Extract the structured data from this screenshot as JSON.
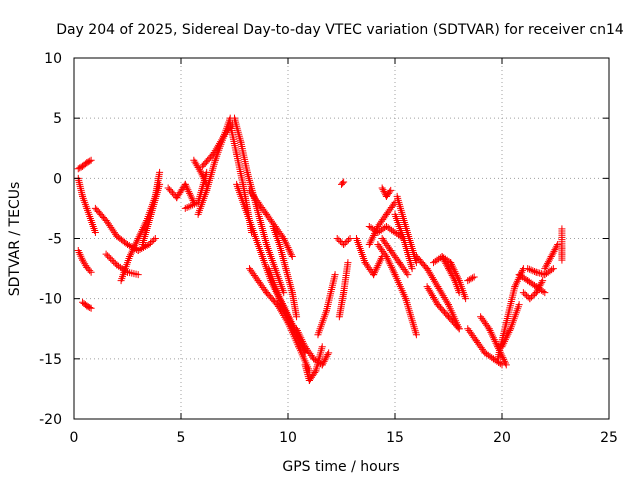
{
  "chart_data": {
    "type": "scatter",
    "title": "Day 204 of 2025, Sidereal Day-to-day VTEC variation (SDTVAR) for receiver cn14",
    "xlabel": "GPS time / hours",
    "ylabel": "SDTVAR / TECUs",
    "xlim": [
      0,
      25
    ],
    "ylim": [
      -20,
      10
    ],
    "x_ticks": [
      "0",
      "5",
      "10",
      "15",
      "20",
      "25"
    ],
    "y_ticks": [
      "-20",
      "-15",
      "-10",
      "-5",
      "0",
      "5",
      "10"
    ],
    "grid": true,
    "marker": "+",
    "marker_color": "#ff0000",
    "series": [
      {
        "name": "arc1",
        "x": [
          0.2,
          0.4,
          0.6,
          0.8
        ],
        "y": [
          0.8,
          1.0,
          1.3,
          1.5
        ]
      },
      {
        "name": "arc2",
        "x": [
          0.2,
          0.4,
          0.6,
          0.8,
          1.0
        ],
        "y": [
          0,
          -1.5,
          -2.5,
          -3.5,
          -4.5
        ]
      },
      {
        "name": "arc3",
        "x": [
          0.2,
          0.4,
          0.6,
          0.8
        ],
        "y": [
          -6,
          -6.8,
          -7.4,
          -7.8
        ]
      },
      {
        "name": "arc4",
        "x": [
          0.4,
          0.6,
          0.8
        ],
        "y": [
          -10.3,
          -10.6,
          -10.8
        ]
      },
      {
        "name": "arc5",
        "x": [
          1.0,
          1.5,
          2.0,
          2.5,
          3.0,
          3.5,
          3.8
        ],
        "y": [
          -2.5,
          -3.5,
          -4.8,
          -5.5,
          -6.0,
          -5.5,
          -5.0
        ]
      },
      {
        "name": "arc6",
        "x": [
          1.5,
          2.0,
          2.5,
          3.0
        ],
        "y": [
          -6.3,
          -7.2,
          -7.8,
          -8.0
        ]
      },
      {
        "name": "arc7",
        "x": [
          2.2,
          2.6,
          3.0,
          3.4,
          3.8,
          4.0
        ],
        "y": [
          -8.5,
          -6.5,
          -5.0,
          -3.5,
          -1.5,
          0.5
        ]
      },
      {
        "name": "arc8",
        "x": [
          3.2,
          3.6,
          4.0
        ],
        "y": [
          -5.5,
          -3.0,
          -0.5
        ]
      },
      {
        "name": "arc9",
        "x": [
          4.4,
          4.8,
          5.2,
          5.6
        ],
        "y": [
          -0.8,
          -1.6,
          -0.5,
          -2.0
        ]
      },
      {
        "name": "arc10",
        "x": [
          5.2,
          5.8,
          6.2
        ],
        "y": [
          -2.5,
          -2.0,
          0.5
        ]
      },
      {
        "name": "arc11",
        "x": [
          5.6,
          5.9,
          6.2
        ],
        "y": [
          1.5,
          0.6,
          -0.5
        ]
      },
      {
        "name": "arc12",
        "x": [
          5.8,
          6.2,
          6.6,
          7.0,
          7.3
        ],
        "y": [
          -3.0,
          -1.0,
          1.5,
          3.5,
          5.0
        ]
      },
      {
        "name": "arc13",
        "x": [
          6.0,
          6.5,
          7.0,
          7.4
        ],
        "y": [
          1.0,
          2.0,
          3.5,
          4.5
        ]
      },
      {
        "name": "arc14",
        "x": [
          7.3,
          7.6,
          7.9,
          8.1,
          8.3
        ],
        "y": [
          4.5,
          2.0,
          -0.5,
          -2.5,
          -4.5
        ]
      },
      {
        "name": "arc15",
        "x": [
          7.5,
          7.8,
          8.1,
          8.4,
          8.7,
          9.0,
          9.4,
          9.8
        ],
        "y": [
          5.0,
          3.0,
          0.5,
          -1.5,
          -3.5,
          -5.5,
          -7.5,
          -9.5
        ]
      },
      {
        "name": "arc16",
        "x": [
          7.6,
          8.0,
          8.4,
          8.8,
          9.2,
          9.6,
          10.0,
          10.4,
          10.8
        ],
        "y": [
          -0.5,
          -2.5,
          -4.5,
          -6.5,
          -8.5,
          -10.0,
          -11.5,
          -13.0,
          -14.5
        ]
      },
      {
        "name": "arc17",
        "x": [
          8.2,
          8.6,
          9.0,
          9.5,
          10.0,
          10.5,
          11.0
        ],
        "y": [
          -7.5,
          -8.5,
          -9.5,
          -10.5,
          -12.0,
          -14.0,
          -16.0
        ]
      },
      {
        "name": "arc18",
        "x": [
          8.2,
          8.6,
          9.0,
          9.4,
          9.8,
          10.2
        ],
        "y": [
          -1.0,
          -2.0,
          -3.0,
          -4.0,
          -5.0,
          -6.5
        ]
      },
      {
        "name": "arc19",
        "x": [
          9.3,
          9.6,
          9.9,
          10.2,
          10.4
        ],
        "y": [
          -4.0,
          -5.5,
          -7.5,
          -9.5,
          -11.5
        ]
      },
      {
        "name": "arc20",
        "x": [
          9.1,
          9.5,
          9.9,
          10.3
        ],
        "y": [
          -7.5,
          -9.5,
          -11.0,
          -12.5
        ]
      },
      {
        "name": "arc21",
        "x": [
          10.4,
          10.8,
          11.2,
          11.6,
          11.9
        ],
        "y": [
          -12.5,
          -14.0,
          -15.0,
          -15.5,
          -14.5
        ]
      },
      {
        "name": "arc22",
        "x": [
          10.8,
          11.0,
          11.3,
          11.6
        ],
        "y": [
          -15.5,
          -16.8,
          -16.0,
          -14.0
        ]
      },
      {
        "name": "arc23",
        "x": [
          11.4,
          11.8,
          12.2
        ],
        "y": [
          -13.0,
          -11.0,
          -8.0
        ]
      },
      {
        "name": "arc24",
        "x": [
          12.3,
          12.6,
          12.9
        ],
        "y": [
          -5.0,
          -5.5,
          -5.0
        ]
      },
      {
        "name": "arc25",
        "x": [
          12.4,
          12.6,
          12.8
        ],
        "y": [
          -11.5,
          -9.5,
          -7.0
        ]
      },
      {
        "name": "arc26",
        "x": [
          12.5,
          12.6
        ],
        "y": [
          -0.5,
          -0.3
        ]
      },
      {
        "name": "arc27",
        "x": [
          13.2,
          13.6,
          14.0,
          14.4
        ],
        "y": [
          -5.0,
          -7.0,
          -8.0,
          -6.5
        ]
      },
      {
        "name": "arc28",
        "x": [
          13.8,
          14.2,
          14.6,
          15.0,
          15.4
        ],
        "y": [
          -4.0,
          -4.5,
          -4.0,
          -4.5,
          -5.0
        ]
      },
      {
        "name": "arc29",
        "x": [
          13.8,
          14.2,
          14.6,
          15.0
        ],
        "y": [
          -5.5,
          -4.0,
          -3.0,
          -2.0
        ]
      },
      {
        "name": "arc30",
        "x": [
          14.2,
          14.6,
          15.0,
          15.5,
          16.0
        ],
        "y": [
          -5.5,
          -6.5,
          -8.0,
          -10.0,
          -13.0
        ]
      },
      {
        "name": "arc31",
        "x": [
          14.4,
          14.8,
          15.2,
          15.6
        ],
        "y": [
          -5.0,
          -6.0,
          -7.0,
          -8.0
        ]
      },
      {
        "name": "arc32",
        "x": [
          14.4,
          14.6,
          14.8
        ],
        "y": [
          -0.8,
          -1.5,
          -1.0
        ]
      },
      {
        "name": "arc33",
        "x": [
          15.1,
          15.5,
          16.0
        ],
        "y": [
          -1.5,
          -4.0,
          -7.0
        ]
      },
      {
        "name": "arc34",
        "x": [
          15.0,
          15.4,
          15.8
        ],
        "y": [
          -3.0,
          -5.0,
          -7.5
        ]
      },
      {
        "name": "arc35",
        "x": [
          16.0,
          16.5,
          17.0,
          17.5,
          18.0
        ],
        "y": [
          -6.5,
          -7.5,
          -9.0,
          -10.5,
          -12.5
        ]
      },
      {
        "name": "arc36",
        "x": [
          16.5,
          17.0,
          17.5,
          18.0
        ],
        "y": [
          -9.0,
          -10.5,
          -11.5,
          -12.5
        ]
      },
      {
        "name": "arc37",
        "x": [
          16.8,
          17.2,
          17.6,
          18.0,
          18.3
        ],
        "y": [
          -7.0,
          -6.5,
          -7.0,
          -8.5,
          -10.0
        ]
      },
      {
        "name": "arc38",
        "x": [
          17.2,
          17.5,
          17.8,
          18.0
        ],
        "y": [
          -6.5,
          -7.5,
          -8.5,
          -9.5
        ]
      },
      {
        "name": "arc39",
        "x": [
          18.4,
          18.8,
          19.2,
          19.6,
          20.0
        ],
        "y": [
          -12.5,
          -13.5,
          -14.5,
          -15.0,
          -15.5
        ]
      },
      {
        "name": "arc40",
        "x": [
          18.4,
          18.7
        ],
        "y": [
          -8.5,
          -8.2
        ]
      },
      {
        "name": "arc41",
        "x": [
          19.0,
          19.4,
          19.8,
          20.2
        ],
        "y": [
          -11.5,
          -12.5,
          -14.0,
          -15.5
        ]
      },
      {
        "name": "arc42",
        "x": [
          19.8,
          20.2,
          20.6,
          21.0
        ],
        "y": [
          -15.0,
          -12.0,
          -9.0,
          -7.5
        ]
      },
      {
        "name": "arc43",
        "x": [
          20.0,
          20.4,
          20.8
        ],
        "y": [
          -14.0,
          -12.5,
          -10.5
        ]
      },
      {
        "name": "arc44",
        "x": [
          20.8,
          21.2,
          21.6,
          22.0
        ],
        "y": [
          -8.0,
          -8.5,
          -9.0,
          -9.5
        ]
      },
      {
        "name": "arc45",
        "x": [
          21.0,
          21.3,
          21.6,
          21.9
        ],
        "y": [
          -9.5,
          -10.0,
          -9.5,
          -8.5
        ]
      },
      {
        "name": "arc46",
        "x": [
          21.2,
          21.6,
          22.0,
          22.4
        ],
        "y": [
          -7.5,
          -7.8,
          -8.0,
          -7.5
        ]
      },
      {
        "name": "arc47",
        "x": [
          22.0,
          22.3,
          22.6
        ],
        "y": [
          -7.5,
          -6.5,
          -5.5
        ]
      },
      {
        "name": "arc48",
        "x": [
          22.8,
          22.8,
          22.8,
          22.8
        ],
        "y": [
          -4.2,
          -5.8,
          -6.3,
          -6.8
        ]
      }
    ]
  }
}
